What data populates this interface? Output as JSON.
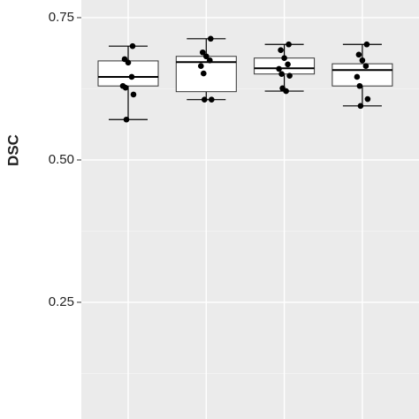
{
  "chart_data": {
    "type": "box",
    "y_label": "DSC",
    "categories": [
      null,
      null,
      null,
      null
    ],
    "ylim": [
      0.045,
      0.781
    ],
    "yticks": [
      0.25,
      {
        "value": 0.5,
        "label": "0.50"
      },
      0.75
    ],
    "yminor": [
      0.125,
      0.375,
      0.625
    ],
    "grid": true,
    "series": [
      {
        "whisker_low": 0.571,
        "q1": 0.63,
        "median": 0.646,
        "q3": 0.674,
        "whisker_high": 0.7,
        "points": [
          0.7,
          0.677,
          0.671,
          0.646,
          0.63,
          0.627,
          0.615,
          0.571
        ]
      },
      {
        "whisker_low": 0.606,
        "q1": 0.62,
        "median": 0.672,
        "q3": 0.682,
        "whisker_high": 0.713,
        "points": [
          0.713,
          0.689,
          0.682,
          0.675,
          0.665,
          0.652,
          0.606,
          0.606
        ]
      },
      {
        "whisker_low": 0.621,
        "q1": 0.651,
        "median": 0.661,
        "q3": 0.679,
        "whisker_high": 0.703,
        "points": [
          0.703,
          0.693,
          0.679,
          0.668,
          0.66,
          0.651,
          0.648,
          0.626,
          0.621
        ]
      },
      {
        "whisker_low": 0.595,
        "q1": 0.63,
        "median": 0.658,
        "q3": 0.669,
        "whisker_high": 0.703,
        "points": [
          0.703,
          0.685,
          0.675,
          0.665,
          0.646,
          0.63,
          0.607,
          0.595
        ]
      }
    ]
  }
}
